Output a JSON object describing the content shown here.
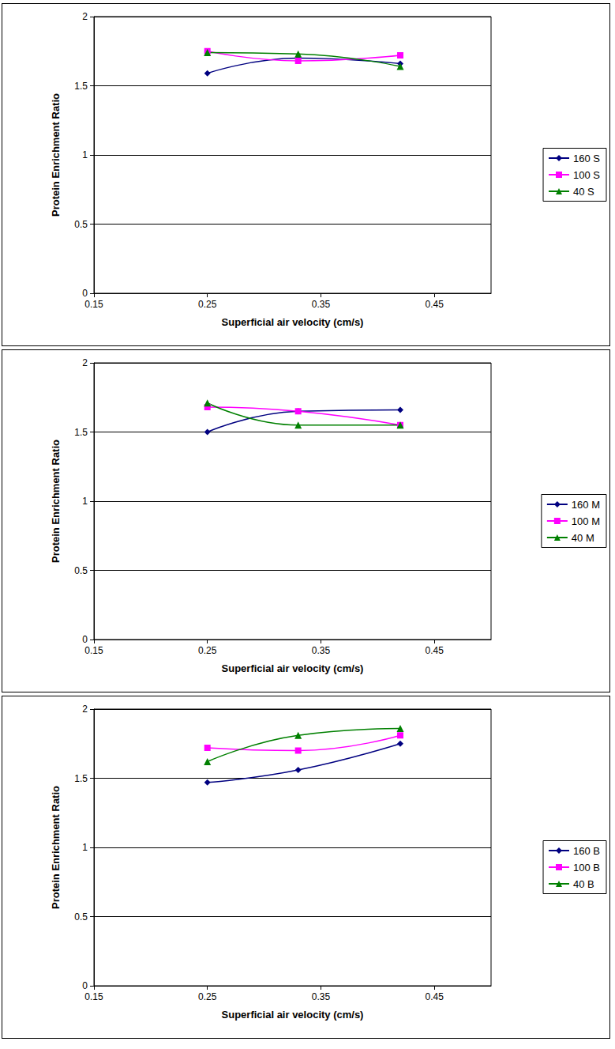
{
  "chart_data": [
    {
      "type": "line",
      "x_label": "Superficial air velocity (cm/s)",
      "y_label": "Protein Enrichment Ratio",
      "x": [
        0.25,
        0.33,
        0.42
      ],
      "series": [
        {
          "name": "160 S",
          "color": "#000080",
          "marker": "diamond",
          "values": [
            1.59,
            1.7,
            1.66
          ]
        },
        {
          "name": "100 S",
          "color": "#FF00FF",
          "marker": "square",
          "values": [
            1.75,
            1.68,
            1.72
          ]
        },
        {
          "name": "40 S",
          "color": "#008000",
          "marker": "triangle",
          "values": [
            1.74,
            1.73,
            1.64
          ]
        }
      ],
      "xlim": [
        0.15,
        0.5
      ],
      "xticks": [
        0.15,
        0.25,
        0.35,
        0.45
      ],
      "ylim": [
        0,
        2
      ],
      "yticks": [
        0,
        0.5,
        1,
        1.5,
        2
      ],
      "grid": true,
      "legend": "right",
      "line_style": "smooth"
    },
    {
      "type": "line",
      "x_label": "Superficial air velocity (cm/s)",
      "y_label": "Protein Enrichment Ratio",
      "x": [
        0.25,
        0.33,
        0.42
      ],
      "series": [
        {
          "name": "160 M",
          "color": "#000080",
          "marker": "diamond",
          "values": [
            1.5,
            1.65,
            1.66
          ]
        },
        {
          "name": "100 M",
          "color": "#FF00FF",
          "marker": "square",
          "values": [
            1.68,
            1.65,
            1.55
          ]
        },
        {
          "name": "40 M",
          "color": "#008000",
          "marker": "triangle",
          "values": [
            1.71,
            1.55,
            1.55
          ]
        }
      ],
      "xlim": [
        0.15,
        0.5
      ],
      "xticks": [
        0.15,
        0.25,
        0.35,
        0.45
      ],
      "ylim": [
        0,
        2
      ],
      "yticks": [
        0,
        0.5,
        1,
        1.5,
        2
      ],
      "grid": true,
      "legend": "right",
      "line_style": "smooth"
    },
    {
      "type": "line",
      "x_label": "Superficial air velocity (cm/s)",
      "y_label": "Protein Enrichment Ratio",
      "x": [
        0.25,
        0.33,
        0.42
      ],
      "series": [
        {
          "name": "160 B",
          "color": "#000080",
          "marker": "diamond",
          "values": [
            1.47,
            1.56,
            1.75
          ]
        },
        {
          "name": "100 B",
          "color": "#FF00FF",
          "marker": "square",
          "values": [
            1.72,
            1.7,
            1.81
          ]
        },
        {
          "name": "40 B",
          "color": "#008000",
          "marker": "triangle",
          "values": [
            1.62,
            1.81,
            1.86
          ]
        }
      ],
      "xlim": [
        0.15,
        0.5
      ],
      "xticks": [
        0.15,
        0.25,
        0.35,
        0.45
      ],
      "ylim": [
        0,
        2
      ],
      "yticks": [
        0,
        0.5,
        1,
        1.5,
        2
      ],
      "grid": true,
      "legend": "right",
      "line_style": "smooth"
    }
  ]
}
